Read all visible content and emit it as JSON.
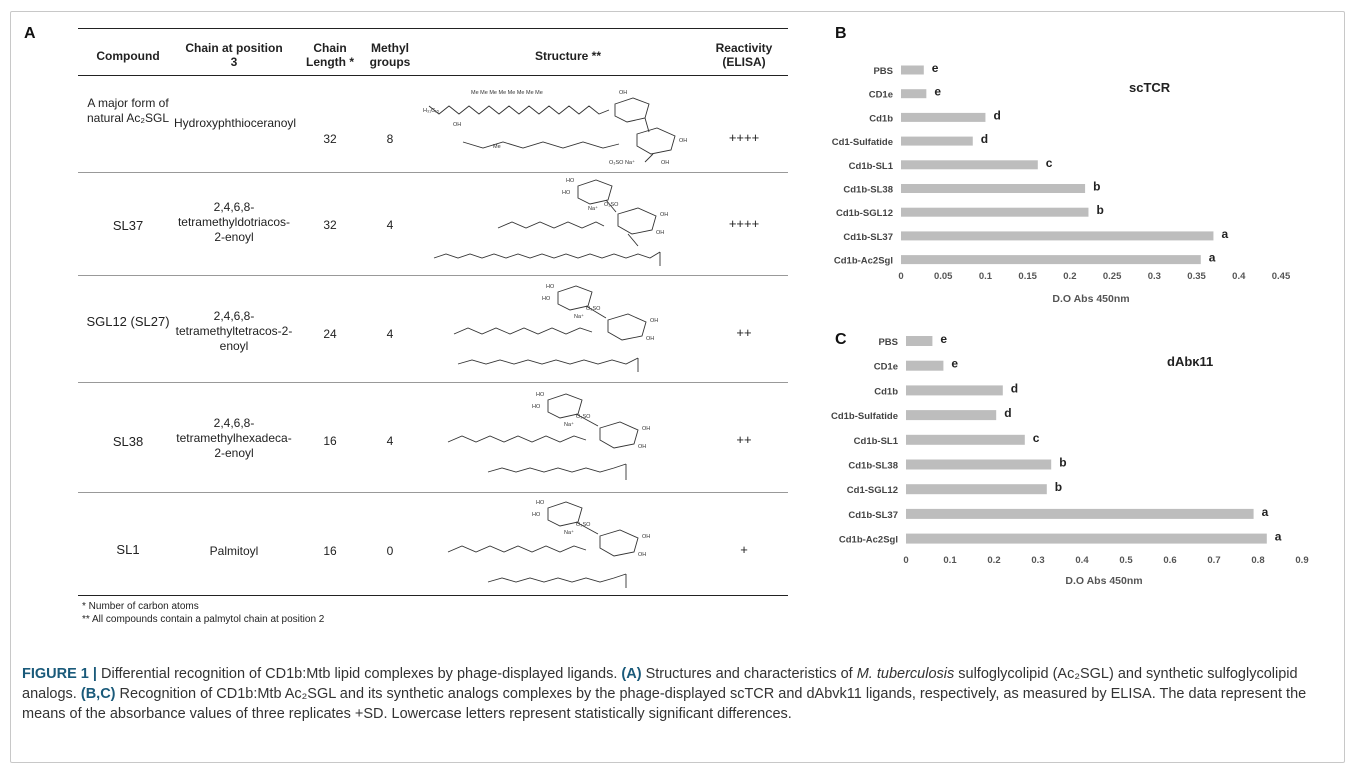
{
  "panel_labels": {
    "a": "A",
    "b": "B",
    "c": "C"
  },
  "table": {
    "headers": [
      "Compound",
      "Chain at position 3",
      "Chain Length *",
      "Methyl groups",
      "Structure **",
      "Reactivity (ELISA)"
    ],
    "rows": [
      {
        "compound": "A major form of natural Ac₂SGL",
        "chain": "Hydroxyphthioceranoyl",
        "length": "32",
        "methyl": "8",
        "reactivity": "++++"
      },
      {
        "compound": "SL37",
        "chain": "2,4,6,8-tetramethyldotriacos-2-enoyl",
        "length": "32",
        "methyl": "4",
        "reactivity": "++++"
      },
      {
        "compound": "SGL12 (SL27)",
        "chain": "2,4,6,8-tetramethyltetracos-2-enoyl",
        "length": "24",
        "methyl": "4",
        "reactivity": "++"
      },
      {
        "compound": "SL38",
        "chain": "2,4,6,8-tetramethylhexadeca-2-enoyl",
        "length": "16",
        "methyl": "4",
        "reactivity": "++"
      },
      {
        "compound": "SL1",
        "chain": "Palmitoyl",
        "length": "16",
        "methyl": "0",
        "reactivity": "+"
      }
    ],
    "footnotes": [
      "*    Number of carbon atoms",
      "**   All compounds contain a palmytol chain at position 2"
    ]
  },
  "chart_data": [
    {
      "type": "bar",
      "panel": "B",
      "title": "scTCR",
      "xlabel": "D.O Abs 450nm",
      "categories": [
        "PBS",
        "CD1e",
        "Cd1b",
        "Cd1-Sulfatide",
        "Cd1b-SL1",
        "Cd1b-SL38",
        "Cd1b-SGL12",
        "Cd1b-SL37",
        "Cd1b-Ac2Sgl"
      ],
      "values": [
        0.027,
        0.03,
        0.1,
        0.085,
        0.162,
        0.218,
        0.222,
        0.37,
        0.355
      ],
      "letters": [
        "e",
        "e",
        "d",
        "d",
        "c",
        "b",
        "b",
        "a",
        "a"
      ],
      "xticks": [
        "0",
        "0.05",
        "0.1",
        "0.15",
        "0.2",
        "0.25",
        "0.3",
        "0.35",
        "0.4",
        "0.45"
      ],
      "xlim": [
        0,
        0.45
      ],
      "bar_color": "#bdbdbd"
    },
    {
      "type": "bar",
      "panel": "C",
      "title": "dAbκ11",
      "xlabel": "D.O Abs 450nm",
      "categories": [
        "PBS",
        "CD1e",
        "Cd1b",
        "Cd1b-Sulfatide",
        "Cd1b-SL1",
        "Cd1b-SL38",
        "Cd1-SGL12",
        "Cd1b-SL37",
        "Cd1b-Ac2Sgl"
      ],
      "values": [
        0.06,
        0.085,
        0.22,
        0.205,
        0.27,
        0.33,
        0.32,
        0.79,
        0.82
      ],
      "letters": [
        "e",
        "e",
        "d",
        "d",
        "c",
        "b",
        "b",
        "a",
        "a"
      ],
      "xticks": [
        "0",
        "0.1",
        "0.2",
        "0.3",
        "0.4",
        "0.5",
        "0.6",
        "0.7",
        "0.8",
        "0.9"
      ],
      "xlim": [
        0,
        0.9
      ],
      "bar_color": "#bdbdbd"
    }
  ],
  "caption": {
    "label": "FIGURE 1 |",
    "text1": " Differential recognition of CD1b:Mtb lipid complexes by phage-displayed ligands. ",
    "a_label": "(A)",
    "text2": " Structures and characteristics of ",
    "italic": "M. tuberculosis",
    "text3": " sulfoglycolipid (Ac₂SGL) and synthetic sulfoglycolipid analogs. ",
    "bc_label": "(B,C)",
    "text4": " Recognition of CD1b:Mtb Ac₂SGL and its synthetic analogs complexes by the phage-displayed scTCR and dAbvk11 ligands, respectively, as measured by ELISA. The data represent the means of the absorbance values of three replicates +SD. Lowercase letters represent statistically significant differences."
  }
}
